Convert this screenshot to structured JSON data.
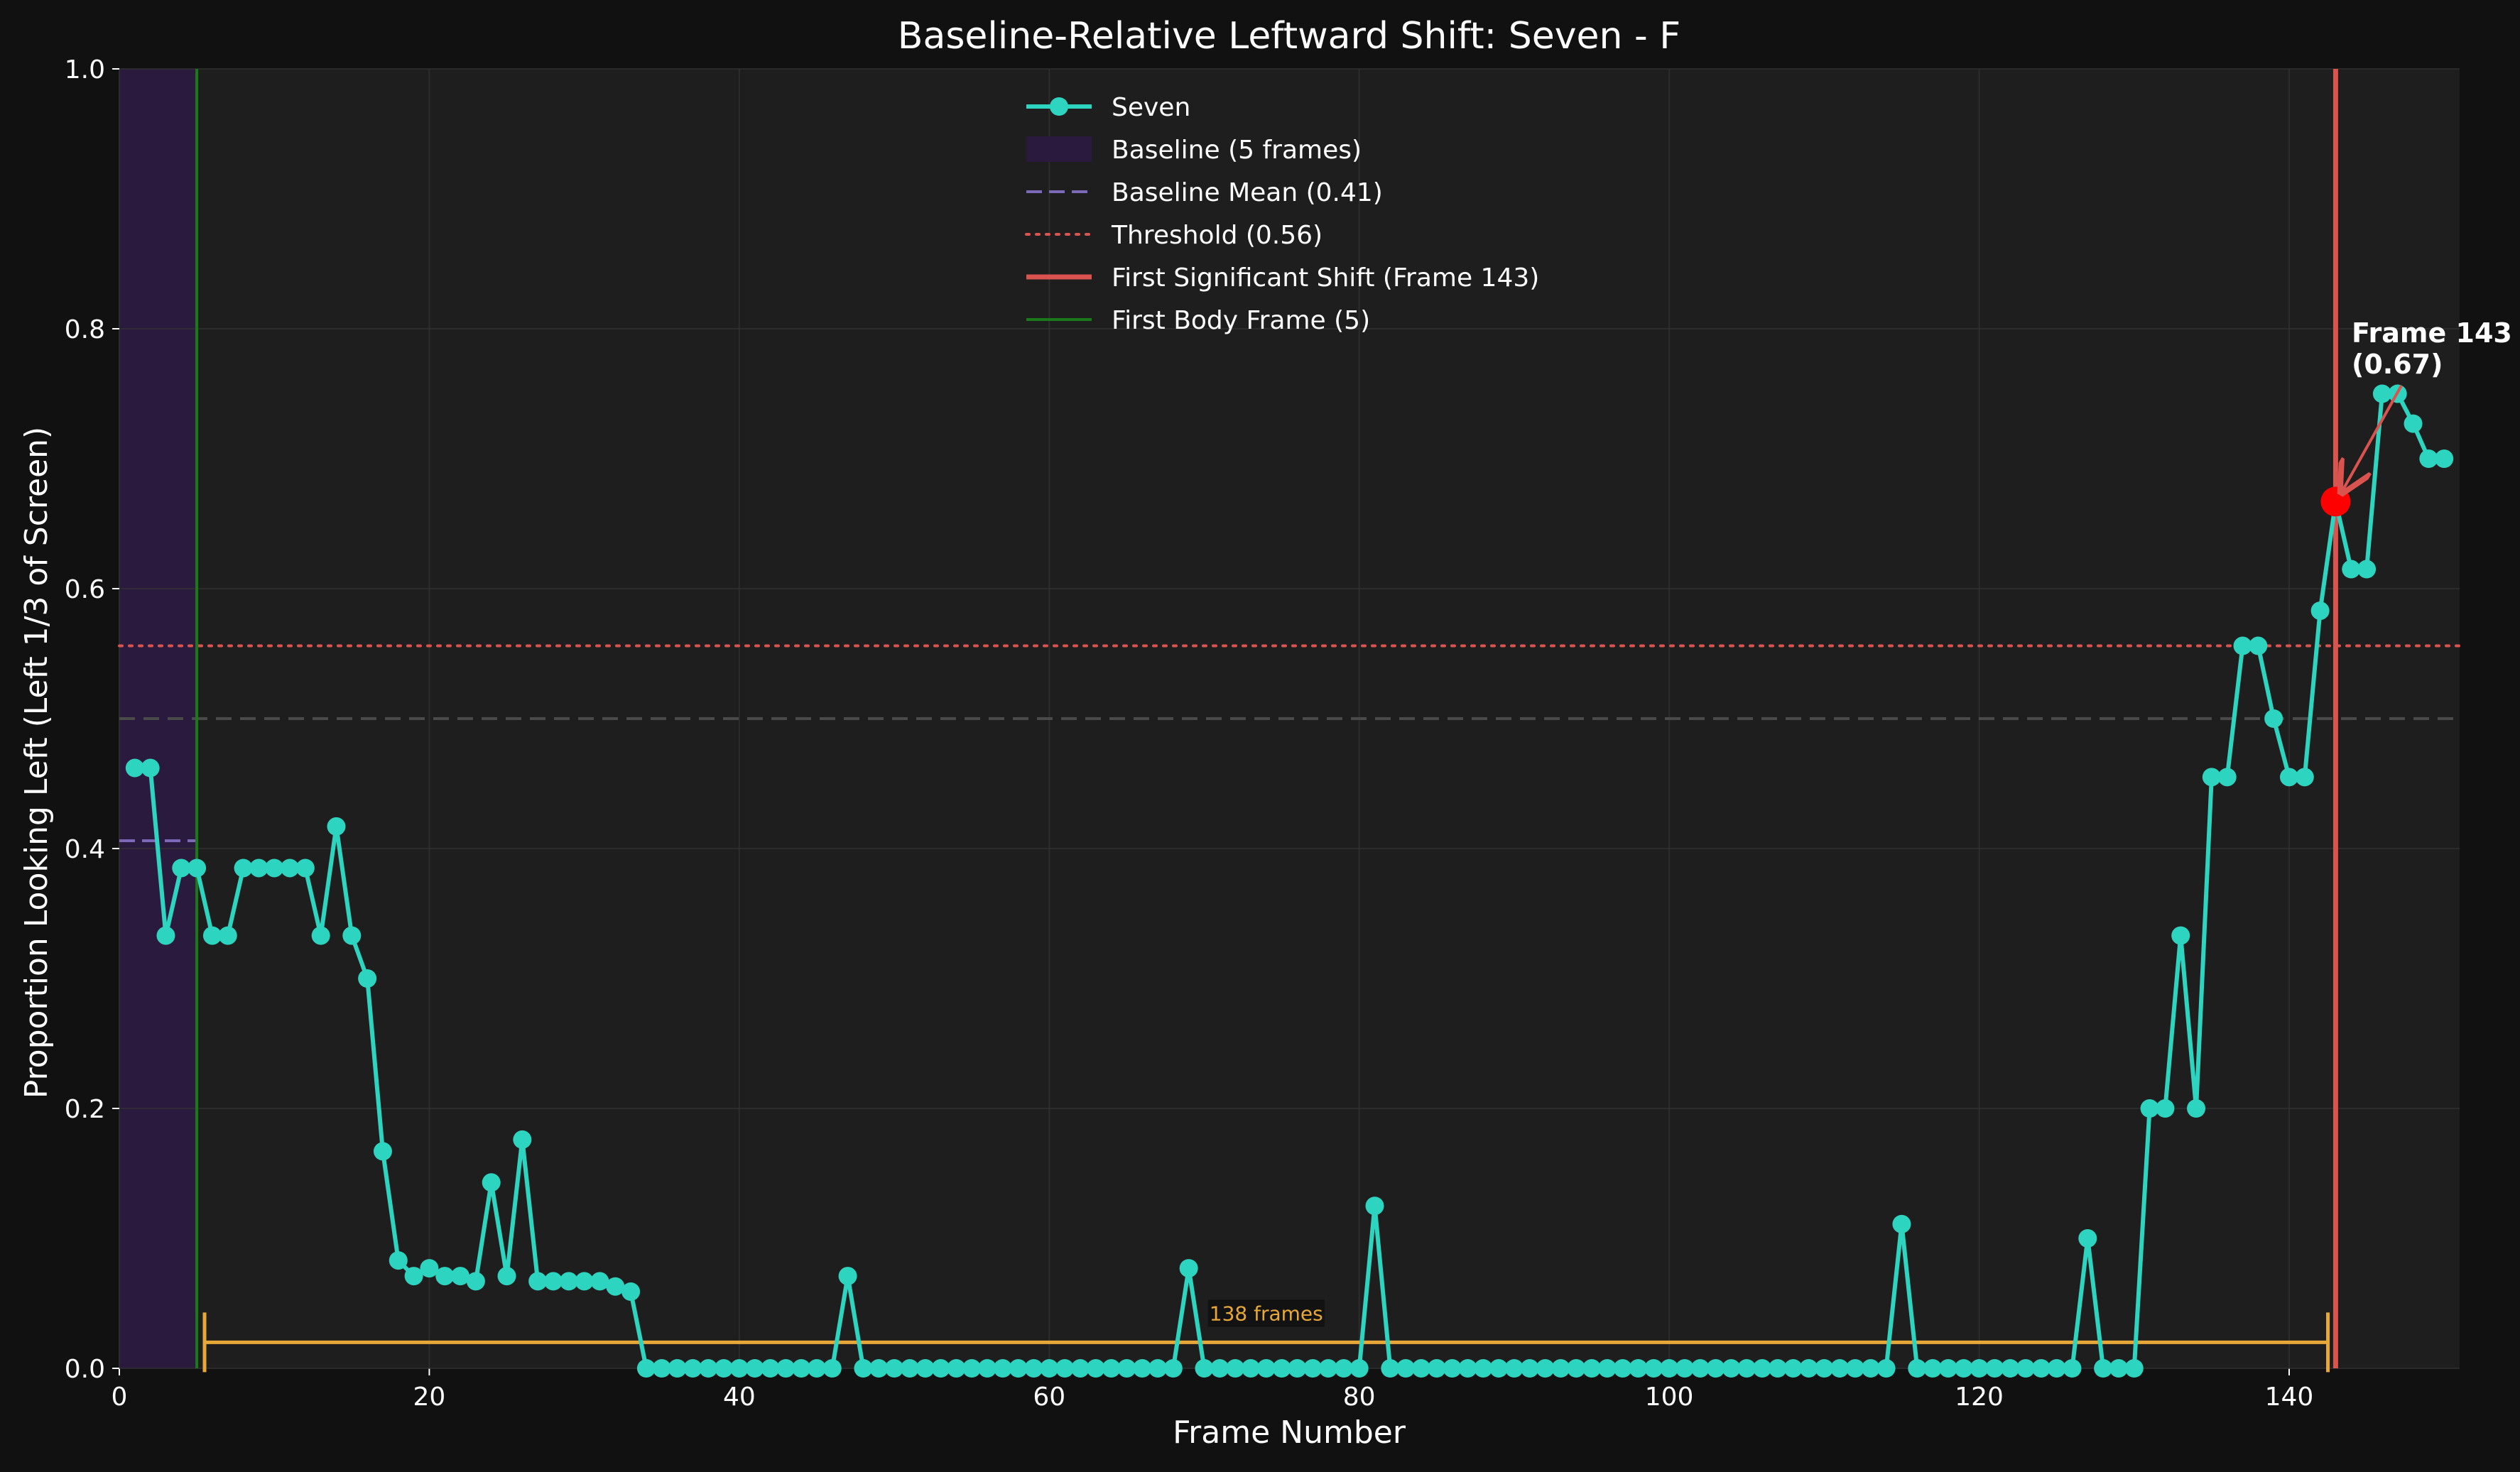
{
  "chart_data": {
    "type": "line",
    "title": "Baseline-Relative Leftward Shift: Seven - F",
    "xlabel": "Frame Number",
    "ylabel": "Proportion Looking Left (Left 1/3 of Screen)",
    "xlim": [
      0,
      151
    ],
    "ylim": [
      0,
      1.0
    ],
    "x_ticks": [
      "0",
      "20",
      "40",
      "60",
      "80",
      "100",
      "120",
      "140"
    ],
    "y_ticks": [
      "0.0",
      "0.2",
      "0.4",
      "0.6",
      "0.8",
      "1.0"
    ],
    "grid": true,
    "legend_position": "top-center",
    "series": [
      {
        "name": "Seven",
        "color": "#2dd4bf",
        "x": [
          1,
          2,
          3,
          4,
          5,
          6,
          7,
          8,
          9,
          10,
          11,
          12,
          13,
          14,
          15,
          16,
          17,
          18,
          19,
          20,
          21,
          22,
          23,
          24,
          25,
          26,
          27,
          28,
          29,
          30,
          31,
          32,
          33,
          34,
          35,
          36,
          37,
          38,
          39,
          40,
          41,
          42,
          43,
          44,
          45,
          46,
          47,
          48,
          49,
          50,
          51,
          52,
          53,
          54,
          55,
          56,
          57,
          58,
          59,
          60,
          61,
          62,
          63,
          64,
          65,
          66,
          67,
          68,
          69,
          70,
          71,
          72,
          73,
          74,
          75,
          76,
          77,
          78,
          79,
          80,
          81,
          82,
          83,
          84,
          85,
          86,
          87,
          88,
          89,
          90,
          91,
          92,
          93,
          94,
          95,
          96,
          97,
          98,
          99,
          100,
          101,
          102,
          103,
          104,
          105,
          106,
          107,
          108,
          109,
          110,
          111,
          112,
          113,
          114,
          115,
          116,
          117,
          118,
          119,
          120,
          121,
          122,
          123,
          124,
          125,
          126,
          127,
          128,
          129,
          130,
          131,
          132,
          133,
          134,
          135,
          136,
          137,
          138,
          139,
          140,
          141,
          142,
          143,
          144,
          145,
          146,
          147,
          148,
          149,
          150
        ],
        "values": [
          0.462,
          0.462,
          0.333,
          0.385,
          0.385,
          0.333,
          0.333,
          0.385,
          0.385,
          0.385,
          0.385,
          0.385,
          0.333,
          0.417,
          0.333,
          0.3,
          0.167,
          0.083,
          0.071,
          0.077,
          0.071,
          0.071,
          0.067,
          0.143,
          0.071,
          0.176,
          0.067,
          0.067,
          0.067,
          0.067,
          0.067,
          0.063,
          0.059,
          0,
          0,
          0,
          0,
          0,
          0,
          0,
          0,
          0,
          0,
          0,
          0,
          0,
          0.071,
          0,
          0,
          0,
          0,
          0,
          0,
          0,
          0,
          0,
          0,
          0,
          0,
          0,
          0,
          0,
          0,
          0,
          0,
          0,
          0,
          0,
          0.077,
          0,
          0,
          0,
          0,
          0,
          0,
          0,
          0,
          0,
          0,
          0,
          0.125,
          0,
          0,
          0,
          0,
          0,
          0,
          0,
          0,
          0,
          0,
          0,
          0,
          0,
          0,
          0,
          0,
          0,
          0,
          0,
          0,
          0,
          0,
          0,
          0,
          0,
          0,
          0,
          0,
          0,
          0,
          0,
          0,
          0,
          0.111,
          0,
          0,
          0,
          0,
          0,
          0,
          0,
          0,
          0,
          0,
          0,
          0.1,
          0,
          0,
          0,
          0.2,
          0.2,
          0.333,
          0.2,
          0.455,
          0.455,
          0.556,
          0.556,
          0.5,
          0.455,
          0.455,
          0.583,
          0.667,
          0.615,
          0.615,
          0.75,
          0.75,
          0.727,
          0.7,
          0.7
        ]
      }
    ],
    "legend": [
      {
        "label": "Seven",
        "kind": "line-marker",
        "color": "#2dd4bf"
      },
      {
        "label": "Baseline (5 frames)",
        "kind": "patch",
        "color": "#2a1a3d"
      },
      {
        "label": "Baseline Mean (0.41)",
        "kind": "dashed",
        "color": "#7b68b8"
      },
      {
        "label": "Threshold (0.56)",
        "kind": "dotted",
        "color": "#d9534f"
      },
      {
        "label": "First Significant Shift (Frame 143)",
        "kind": "solid-thick",
        "color": "#d9534f"
      },
      {
        "label": "First Body Frame (5)",
        "kind": "solid",
        "color": "#1a7a1a"
      }
    ],
    "baseline_span": [
      0,
      5
    ],
    "baseline_mean": 0.406,
    "threshold": 0.556,
    "midline": 0.5,
    "first_shift_frame": 143,
    "first_shift_value": 0.667,
    "first_body_frame": 5,
    "annotation": {
      "line1": "Frame 143",
      "line2": "(0.67)"
    },
    "span": {
      "start": 5.5,
      "end": 142.5,
      "y": 0.02,
      "label": "138 frames"
    },
    "colors": {
      "figure_bg": "#111111",
      "plot_bg": "#1e1e1e",
      "grid": "#333333",
      "series": "#2dd4bf",
      "baseline_fill": "#2a1a3d",
      "baseline_mean": "#7b68b8",
      "threshold": "#d9534f",
      "shift_line": "#d9534f",
      "body_frame": "#1a7a1a",
      "span": "#e8a838",
      "highlight_point": "#ff0000",
      "midline": "#4a4a4a"
    }
  }
}
